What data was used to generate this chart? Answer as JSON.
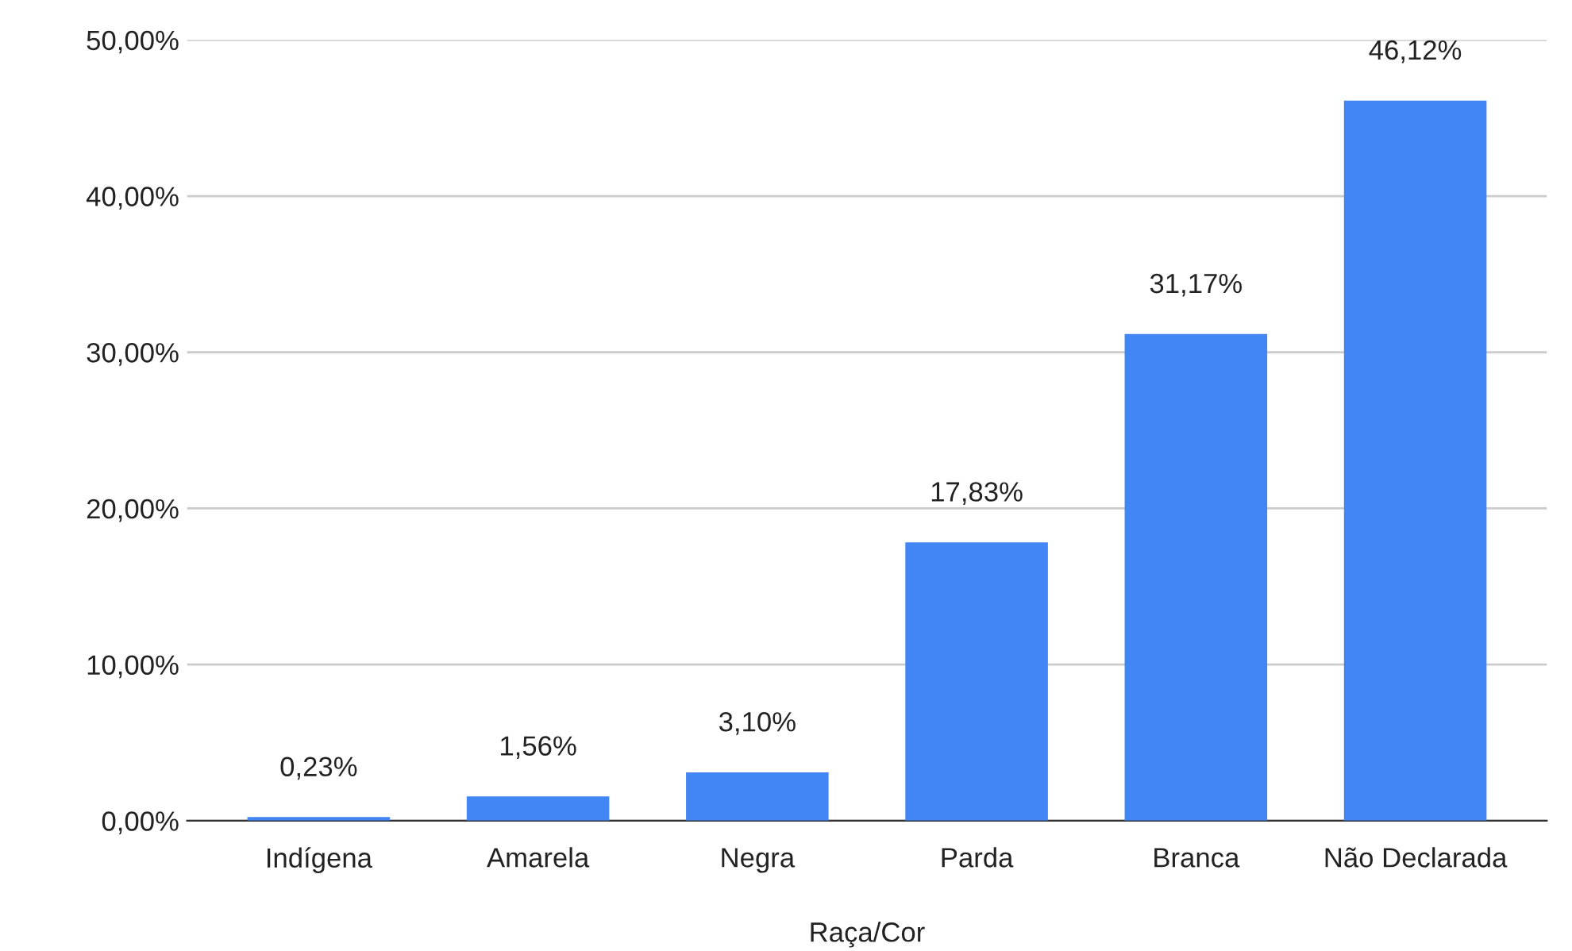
{
  "chart_data": {
    "type": "bar",
    "xlabel": "Raça/Cor",
    "categories": [
      "Indígena",
      "Amarela",
      "Negra",
      "Parda",
      "Branca",
      "Não Declarada"
    ],
    "values": [
      0.23,
      1.56,
      3.1,
      17.83,
      31.17,
      46.12
    ],
    "value_labels": [
      "0,23%",
      "1,56%",
      "3,10%",
      "17,83%",
      "31,17%",
      "46,12%"
    ],
    "color": "#4285f4",
    "ylim": [
      0,
      50
    ],
    "yticks": [
      {
        "value": 0,
        "label": "0,00%"
      },
      {
        "value": 10,
        "label": "10,00%"
      },
      {
        "value": 20,
        "label": "20,00%"
      },
      {
        "value": 30,
        "label": "30,00%"
      },
      {
        "value": 40,
        "label": "40,00%"
      },
      {
        "value": 50,
        "label": "50,00%"
      }
    ],
    "grid": "y",
    "legend": false
  }
}
